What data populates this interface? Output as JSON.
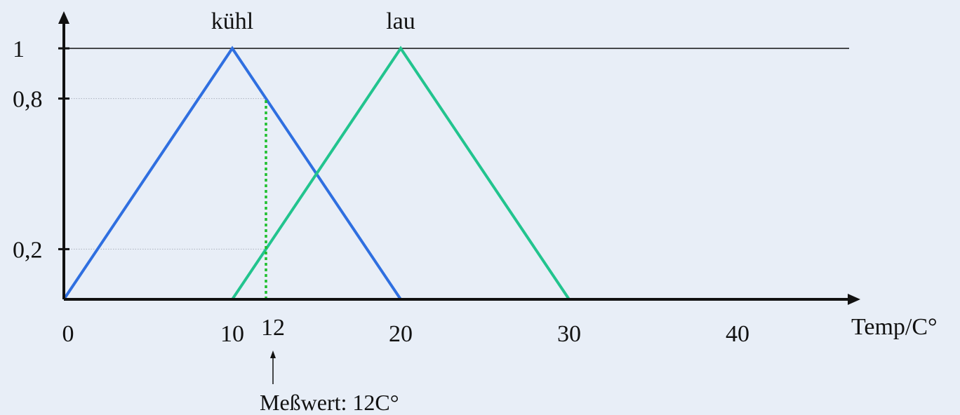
{
  "chart_data": {
    "type": "line",
    "title": "",
    "xlabel": "Temp/C°",
    "ylabel": "",
    "xlim": [
      0,
      47
    ],
    "ylim": [
      0,
      1.12
    ],
    "x_ticks": [
      {
        "value": 0,
        "label": "0"
      },
      {
        "value": 10,
        "label": "10"
      },
      {
        "value": 20,
        "label": "20"
      },
      {
        "value": 30,
        "label": "30"
      },
      {
        "value": 40,
        "label": "40"
      }
    ],
    "y_ticks": [
      {
        "value": 1,
        "label": "1"
      },
      {
        "value": 0.8,
        "label": "0,8"
      },
      {
        "value": 0.2,
        "label": "0,2"
      }
    ],
    "series": [
      {
        "name": "kühl",
        "color": "#2f6fe0",
        "points": [
          [
            0,
            0
          ],
          [
            10,
            1
          ],
          [
            20,
            0
          ]
        ]
      },
      {
        "name": "lau",
        "color": "#22c48e",
        "points": [
          [
            10,
            0
          ],
          [
            20,
            1
          ],
          [
            30,
            0
          ]
        ]
      }
    ],
    "reference_lines": [
      {
        "axis": "y",
        "value": 1
      },
      {
        "axis": "y",
        "value": 0.8
      },
      {
        "axis": "y",
        "value": 0.2
      }
    ],
    "measurement": {
      "x": 12,
      "x_label": "12",
      "label": "Meßwert: 12C°",
      "line_color": "#1fbf2e"
    }
  }
}
